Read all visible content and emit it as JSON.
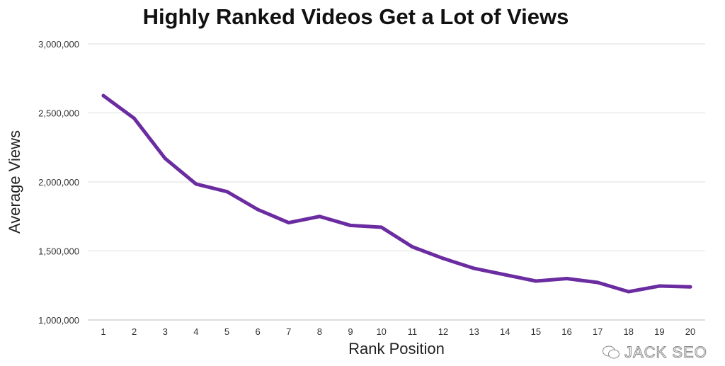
{
  "chart_data": {
    "type": "line",
    "title": "Highly Ranked Videos Get a Lot of Views",
    "xlabel": "Rank Position",
    "ylabel": "Average Views",
    "x": [
      1,
      2,
      3,
      4,
      5,
      6,
      7,
      8,
      9,
      10,
      11,
      12,
      13,
      14,
      15,
      16,
      17,
      18,
      19,
      20
    ],
    "values": [
      2625000,
      2460000,
      2170000,
      1985000,
      1930000,
      1800000,
      1705000,
      1750000,
      1685000,
      1672000,
      1530000,
      1446000,
      1374000,
      1328000,
      1282000,
      1300000,
      1272000,
      1205000,
      1246000,
      1240000
    ],
    "ylim": [
      1000000,
      3000000
    ],
    "yticks": [
      "1,000,000",
      "1,500,000",
      "2,000,000",
      "2,500,000",
      "3,000,000"
    ],
    "grid": true,
    "line_color": "#6a2ca0"
  },
  "watermark": "JACK SEO"
}
